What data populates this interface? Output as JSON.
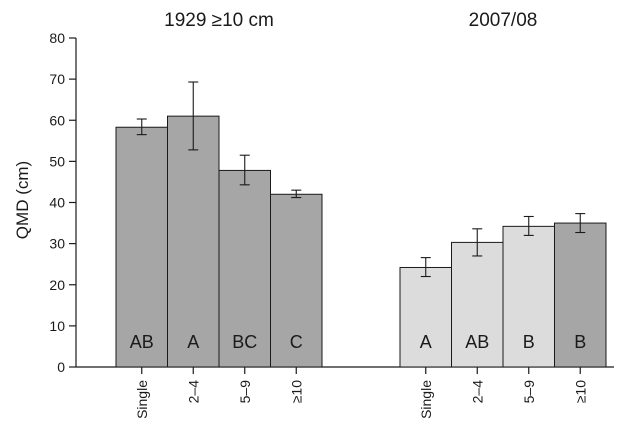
{
  "chart_data": {
    "type": "bar",
    "ylabel": "QMD (cm)",
    "ylim": [
      0,
      80
    ],
    "yticks": [
      0,
      10,
      20,
      30,
      40,
      50,
      60,
      70,
      80
    ],
    "grid": false,
    "panels": [
      {
        "title": "1929 ≥10 cm",
        "categories": [
          "Single",
          "2–4",
          "5–9",
          "≥10"
        ],
        "values": [
          58.3,
          61.0,
          47.8,
          42.0
        ],
        "error_low": [
          56.5,
          52.8,
          44.3,
          41.2
        ],
        "error_high": [
          60.3,
          69.3,
          51.5,
          43.0
        ],
        "letters": [
          "AB",
          "A",
          "BC",
          "C"
        ],
        "colors": [
          "#a6a6a6",
          "#a6a6a6",
          "#a6a6a6",
          "#a6a6a6"
        ]
      },
      {
        "title": "2007/08",
        "categories": [
          "Single",
          "2–4",
          "5–9",
          "≥10"
        ],
        "values": [
          24.2,
          30.3,
          34.2,
          35.0
        ],
        "error_low": [
          22.0,
          27.0,
          32.0,
          32.7
        ],
        "error_high": [
          26.6,
          33.6,
          36.6,
          37.3
        ],
        "letters": [
          "A",
          "AB",
          "B",
          "B"
        ],
        "colors": [
          "#dcdcdc",
          "#dcdcdc",
          "#dcdcdc",
          "#a6a6a6"
        ]
      }
    ]
  }
}
